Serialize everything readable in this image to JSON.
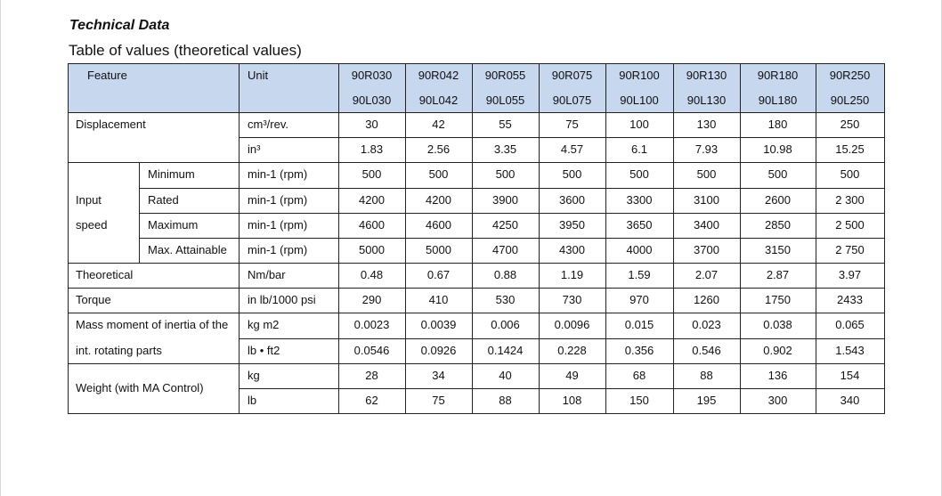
{
  "header": {
    "title": "Technical Data",
    "subtitle": "Table of values (theoretical values)"
  },
  "table": {
    "feature_header": "Feature",
    "unit_header": "Unit",
    "models": [
      [
        "90R030",
        "90L030"
      ],
      [
        "90R042",
        "90L042"
      ],
      [
        "90R055",
        "90L055"
      ],
      [
        "90R075",
        "90L075"
      ],
      [
        "90R100",
        "90L100"
      ],
      [
        "90R130",
        "90L130"
      ],
      [
        "90R180",
        "90L180"
      ],
      [
        "90R250",
        "90L250"
      ]
    ],
    "groups": [
      {
        "rows": [
          {
            "feature": "Displacement",
            "unit": "cm³/rev.",
            "values": [
              "30",
              "42",
              "55",
              "75",
              "100",
              "130",
              "180",
              "250"
            ]
          },
          {
            "unit": "in³",
            "values": [
              "1.83",
              "2.56",
              "3.35",
              "4.57",
              "6.1",
              "7.93",
              "10.98",
              "15.25"
            ]
          }
        ]
      },
      {
        "feature": [
          "Input",
          "speed"
        ],
        "rows": [
          {
            "sub": "Minimum",
            "unit": "min-1 (rpm)",
            "values": [
              "500",
              "500",
              "500",
              "500",
              "500",
              "500",
              "500",
              "500"
            ]
          },
          {
            "sub": "Rated",
            "unit": "min-1 (rpm)",
            "values": [
              "4200",
              "4200",
              "3900",
              "3600",
              "3300",
              "3100",
              "2600",
              "2 300"
            ]
          },
          {
            "sub": "Maximum",
            "unit": "min-1 (rpm)",
            "values": [
              "4600",
              "4600",
              "4250",
              "3950",
              "3650",
              "3400",
              "2850",
              "2 500"
            ]
          },
          {
            "sub": "Max. Attainable",
            "unit": "min-1 (rpm)",
            "values": [
              "5000",
              "5000",
              "4700",
              "4300",
              "4000",
              "3700",
              "3150",
              "2 750"
            ]
          }
        ]
      },
      {
        "rows": [
          {
            "feature": "Theoretical",
            "unit": "Nm/bar",
            "values": [
              "0.48",
              "0.67",
              "0.88",
              "1.19",
              "1.59",
              "2.07",
              "2.87",
              "3.97"
            ]
          }
        ]
      },
      {
        "rows": [
          {
            "feature": "Torque",
            "unit": "in lb/1000 psi",
            "values": [
              "290",
              "410",
              "530",
              "730",
              "970",
              "1260",
              "1750",
              "2433"
            ]
          }
        ]
      },
      {
        "feature": [
          "Mass moment of inertia of the",
          "int. rotating parts"
        ],
        "rows": [
          {
            "unit": "kg m2",
            "values": [
              "0.0023",
              "0.0039",
              "0.006",
              "0.0096",
              "0.015",
              "0.023",
              "0.038",
              "0.065"
            ]
          },
          {
            "unit": "lb • ft2",
            "values": [
              "0.0546",
              "0.0926",
              "0.1424",
              "0.228",
              "0.356",
              "0.546",
              "0.902",
              "1.543"
            ]
          }
        ]
      },
      {
        "feature": [
          "Weight (with MA Control)"
        ],
        "rows": [
          {
            "unit": "kg",
            "values": [
              "28",
              "34",
              "40",
              "49",
              "68",
              "88",
              "136",
              "154"
            ]
          },
          {
            "unit": "lb",
            "values": [
              "62",
              "75",
              "88",
              "108",
              "150",
              "195",
              "300",
              "340"
            ]
          }
        ]
      }
    ]
  }
}
